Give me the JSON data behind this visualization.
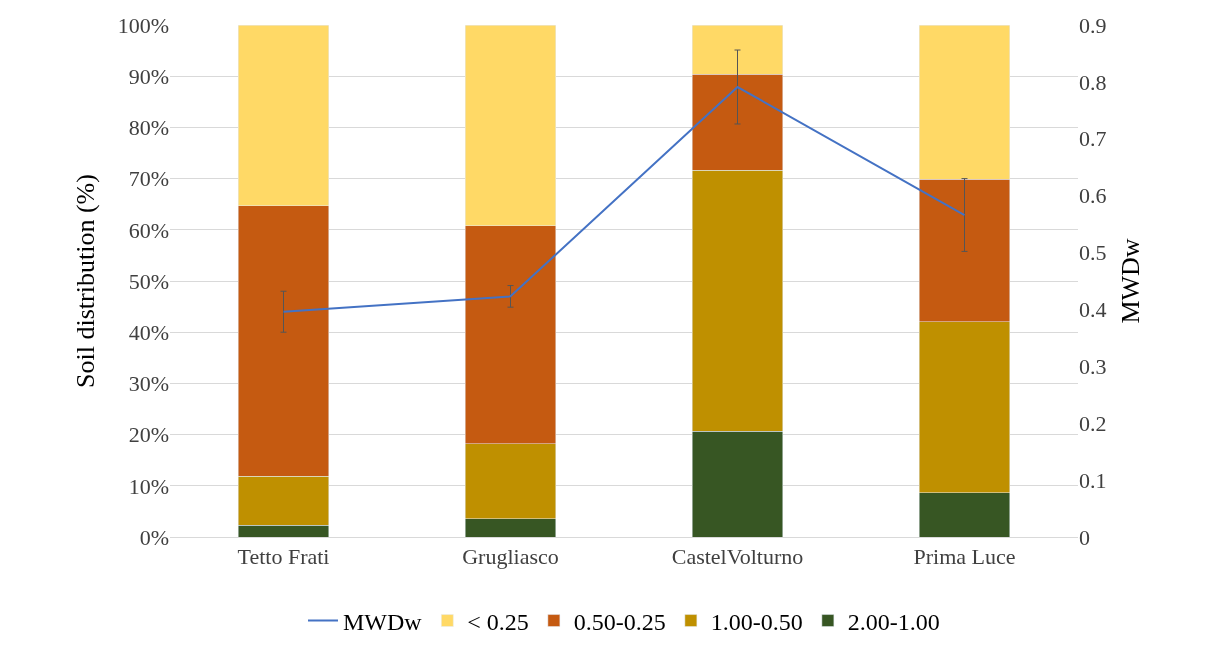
{
  "chart_data": {
    "type": "bar",
    "stacked": true,
    "categories": [
      "Tetto Frati",
      "Grugliasco",
      "CastelVolturno",
      "Prima Luce"
    ],
    "ylabel": "Soil distribution (%)",
    "y2label": "MWDw",
    "series": [
      {
        "name": "2.00-1.00",
        "color": "#375623",
        "values": [
          2.3,
          3.6,
          20.7,
          8.6
        ]
      },
      {
        "name": "1.00-0.50",
        "color": "#bf9000",
        "values": [
          9.6,
          14.6,
          50.9,
          33.4
        ]
      },
      {
        "name": "0.50-0.25",
        "color": "#c55a11",
        "values": [
          52.8,
          42.6,
          18.8,
          27.9
        ]
      },
      {
        "name": "< 0.25",
        "color": "#ffd966",
        "values": [
          35.3,
          39.2,
          9.6,
          30.1
        ]
      },
      {
        "name": "MWDw",
        "type": "line",
        "axis": "y2",
        "color": "#4472c4",
        "values": [
          0.396,
          0.423,
          0.791,
          0.566
        ],
        "errors": [
          0.036,
          0.019,
          0.065,
          0.064
        ]
      }
    ],
    "ylim": [
      0,
      100
    ],
    "yticks": [
      {
        "value": 0,
        "label": "0%"
      },
      {
        "value": 10,
        "label": "10%"
      },
      {
        "value": 20,
        "label": "20%"
      },
      {
        "value": 30,
        "label": "30%"
      },
      {
        "value": 40,
        "label": "40%"
      },
      {
        "value": 50,
        "label": "50%"
      },
      {
        "value": 60,
        "label": "60%"
      },
      {
        "value": 70,
        "label": "70%"
      },
      {
        "value": 80,
        "label": "80%"
      },
      {
        "value": 90,
        "label": "90%"
      },
      {
        "value": 100,
        "label": "100%"
      }
    ],
    "y2lim": [
      0,
      0.9
    ],
    "y2ticks": [
      0,
      0.1,
      0.2,
      0.3,
      0.4,
      0.5,
      0.6,
      0.7,
      0.8,
      0.9
    ],
    "grid": "y",
    "legend": "bottom",
    "marker": "none",
    "line_style": "solid"
  }
}
